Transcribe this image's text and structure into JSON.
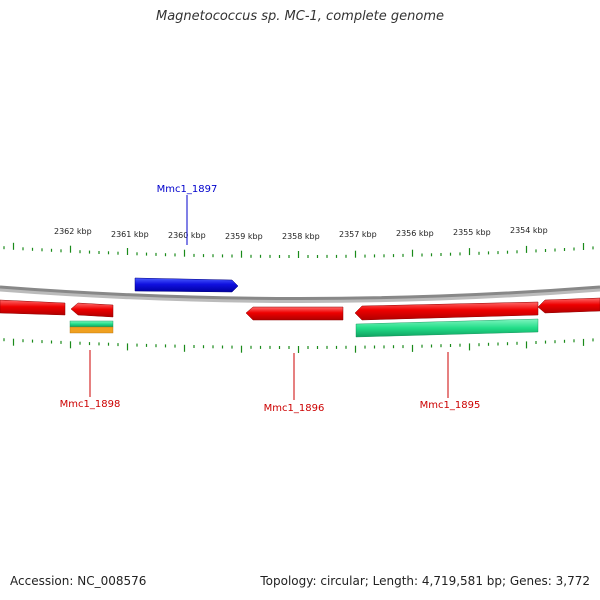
{
  "title": "Magnetococcus sp. MC-1, complete genome",
  "accession": "Accession: NC_008576",
  "summary": "Topology: circular; Length: 4,719,581 bp; Genes: 3,772",
  "scale_labels": [
    "2362 kbp",
    "2361 kbp",
    "2360 kbp",
    "2359 kbp",
    "2358 kbp",
    "2357 kbp",
    "2356 kbp",
    "2355 kbp",
    "2354 kbp"
  ],
  "gene_labels": [
    {
      "name": "Mmc1_1897",
      "color": "#0000cc"
    },
    {
      "name": "Mmc1_1898",
      "color": "#cc0000"
    },
    {
      "name": "Mmc1_1896",
      "color": "#cc0000"
    },
    {
      "name": "Mmc1_1895",
      "color": "#cc0000"
    }
  ],
  "colors": {
    "forward_gene": "#1010e0",
    "reverse_gene": "#ee0000",
    "backbone": "#888888",
    "ticks": "#1a8a1a",
    "feature_green": "#22dd88",
    "feature_orange": "#f0a020"
  }
}
